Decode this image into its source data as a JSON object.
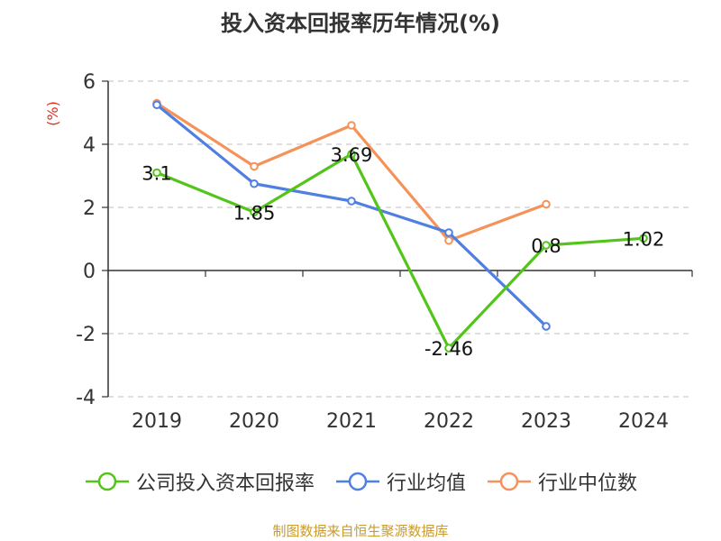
{
  "chart_data": {
    "type": "line",
    "title": "投入资本回报率历年情况(%)",
    "ylabel": "(%)",
    "xlabel": "",
    "categories": [
      "2019",
      "2020",
      "2021",
      "2022",
      "2023",
      "2024"
    ],
    "ylim": [
      -4,
      6
    ],
    "yticks": [
      6,
      4,
      2,
      0,
      -2,
      -4
    ],
    "grid": true,
    "series": [
      {
        "name": "公司投入资本回报率",
        "color": "#52c41a",
        "values": [
          3.1,
          1.85,
          3.69,
          -2.46,
          0.8,
          1.02
        ],
        "labels": [
          "3.1",
          "1.85",
          "3.69",
          "-2.46",
          "0.8",
          "1.02"
        ]
      },
      {
        "name": "行业均值",
        "color": "#4f7fe0",
        "values": [
          5.25,
          2.75,
          2.2,
          1.2,
          -1.77,
          null
        ]
      },
      {
        "name": "行业中位数",
        "color": "#f5925a",
        "values": [
          5.3,
          3.3,
          4.6,
          0.95,
          2.1,
          null
        ]
      }
    ],
    "legend_position": "bottom"
  },
  "source": "制图数据来自恒生聚源数据库"
}
